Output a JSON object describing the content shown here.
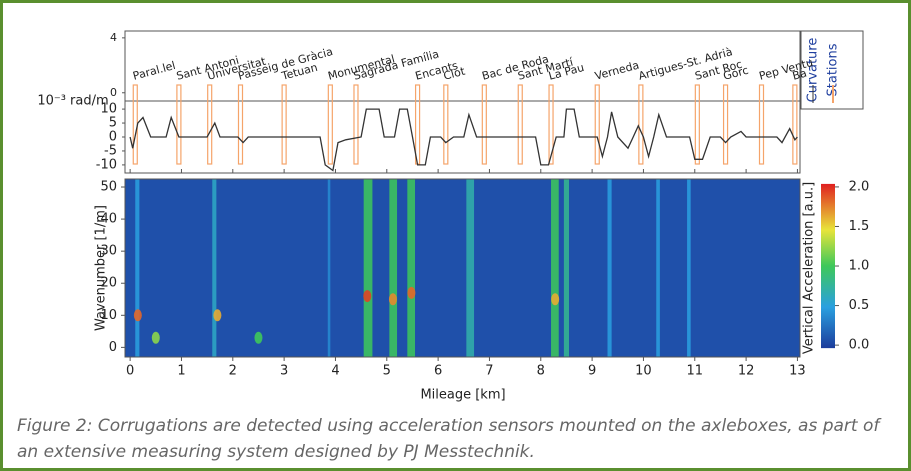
{
  "chart_data": [
    {
      "type": "line",
      "ylabel": "10⁻³ rad/m",
      "xlim": [
        -0.1,
        13.05
      ],
      "station_ylim": [
        -0.6,
        4.5
      ],
      "station_yticks": [
        0,
        4
      ],
      "ylim": [
        -12.9,
        12.9
      ],
      "yticks": [
        -10,
        -5,
        0,
        5,
        10
      ],
      "series": [
        {
          "name": "Curvature",
          "color": "#333333",
          "x": [
            0,
            0.05,
            0.15,
            0.25,
            0.4,
            0.7,
            0.8,
            0.95,
            1.5,
            1.65,
            1.75,
            2.1,
            2.2,
            2.3,
            3.7,
            3.8,
            3.95,
            4.05,
            4.2,
            4.5,
            4.6,
            4.85,
            4.95,
            5.15,
            5.25,
            5.4,
            5.5,
            5.6,
            5.75,
            5.85,
            6.05,
            6.15,
            6.3,
            6.5,
            6.6,
            6.75,
            7.9,
            8.0,
            8.15,
            8.3,
            8.45,
            8.5,
            8.65,
            8.75,
            9.1,
            9.2,
            9.3,
            9.38,
            9.5,
            9.7,
            9.8,
            9.9,
            10.0,
            10.1,
            10.2,
            10.3,
            10.45,
            10.9,
            11.0,
            11.15,
            11.3,
            11.5,
            11.6,
            11.7,
            11.9,
            12.0,
            12.6,
            12.7,
            12.85,
            12.95,
            13
          ],
          "values": [
            0,
            -4,
            5,
            7,
            0,
            0,
            7,
            0,
            0,
            5,
            0,
            0,
            -2,
            0,
            0,
            -10,
            -12,
            -2,
            -1,
            0,
            10,
            10,
            0,
            0,
            10,
            10,
            0,
            -10,
            -10,
            0,
            0,
            -2,
            0,
            0,
            8,
            0,
            0,
            -10,
            -10,
            0,
            0,
            10,
            10,
            0,
            0,
            -7,
            0,
            9,
            0,
            -4,
            0,
            4,
            0,
            -7,
            0,
            8,
            0,
            0,
            -8,
            -8,
            0,
            0,
            -2,
            0,
            2,
            0,
            0,
            -2,
            3,
            -1,
            0
          ]
        }
      ],
      "stations": {
        "name": "Stations",
        "color": "#f5a46a",
        "x": [
          0.1,
          0.95,
          1.55,
          2.15,
          3.0,
          3.9,
          4.4,
          5.6,
          6.15,
          6.9,
          7.6,
          8.2,
          9.1,
          9.95,
          11.05,
          11.6,
          12.3,
          12.95
        ],
        "labels": [
          "Paral.lel",
          "Sant Antoni",
          "Universitat",
          "Passeig de Gràcia",
          "Tetuan",
          "Monumental",
          "Sagrada Família",
          "Encants",
          "Clot",
          "Bac de Roda",
          "Sant Martí",
          "La Pau",
          "Verneda",
          "Artigues-St. Adrià",
          "Sant Roc",
          "Gorc",
          "Pep Ventu",
          "Ba"
        ]
      }
    },
    {
      "type": "heatmap",
      "xlabel": "Mileage [km]",
      "ylabel": "Wavenumber [1/m]",
      "xlim": [
        -0.1,
        13.05
      ],
      "xticks": [
        0,
        1,
        2,
        3,
        4,
        5,
        6,
        7,
        8,
        9,
        10,
        11,
        12,
        13
      ],
      "ylim": [
        -3,
        52.5
      ],
      "yticks": [
        0,
        10,
        20,
        30,
        40,
        50
      ],
      "background": 0.1,
      "bands": [
        {
          "x": [
            0.1,
            0.18
          ],
          "value": 0.5
        },
        {
          "x": [
            1.6,
            1.68
          ],
          "value": 0.6
        },
        {
          "x": [
            3.85,
            3.9
          ],
          "value": 0.4
        },
        {
          "x": [
            4.55,
            4.72
          ],
          "value": 1.0
        },
        {
          "x": [
            5.05,
            5.2
          ],
          "value": 1.0
        },
        {
          "x": [
            5.4,
            5.55
          ],
          "value": 1.0
        },
        {
          "x": [
            6.55,
            6.7
          ],
          "value": 0.7
        },
        {
          "x": [
            8.2,
            8.35
          ],
          "value": 1.0
        },
        {
          "x": [
            8.45,
            8.55
          ],
          "value": 0.8
        },
        {
          "x": [
            9.3,
            9.38
          ],
          "value": 0.5
        },
        {
          "x": [
            10.25,
            10.32
          ],
          "value": 0.5
        },
        {
          "x": [
            10.85,
            10.92
          ],
          "value": 0.5
        }
      ],
      "hotspots": [
        {
          "x": 0.15,
          "y": 10,
          "value": 1.8
        },
        {
          "x": 1.7,
          "y": 10,
          "value": 1.6
        },
        {
          "x": 4.62,
          "y": 16,
          "value": 1.9
        },
        {
          "x": 5.12,
          "y": 15,
          "value": 1.7
        },
        {
          "x": 5.48,
          "y": 17,
          "value": 1.8
        },
        {
          "x": 8.28,
          "y": 15,
          "value": 1.6
        },
        {
          "x": 0.5,
          "y": 3,
          "value": 1.2
        },
        {
          "x": 2.5,
          "y": 3,
          "value": 1.0
        }
      ],
      "colorbar": {
        "label": "Vertical Acceleration [a.u.]",
        "lim": [
          -0.15,
          2.1
        ],
        "ticks": [
          {
            "value": 0,
            "label": "0.0"
          },
          0.5,
          {
            "value": 1,
            "label": "1.0"
          },
          1.5,
          {
            "value": 2,
            "label": "2.0"
          }
        ]
      }
    }
  ],
  "caption": "Figure 2: Corrugations are detected using acceleration sensors mounted on the axleboxes, as part of an extensive measuring system designed by PJ Messtechnik."
}
